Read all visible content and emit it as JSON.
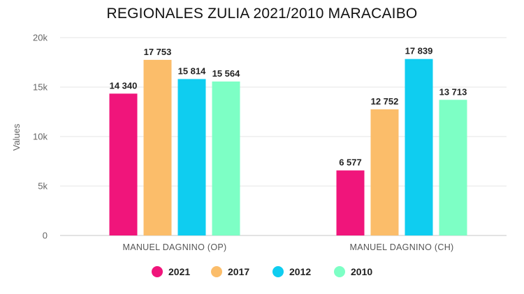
{
  "chart_data": {
    "type": "bar",
    "title": "REGIONALES ZULIA 2021/2010 MARACAIBO",
    "xlabel": "",
    "ylabel": "Values",
    "categories": [
      "MANUEL DAGNINO (OP)",
      "MANUEL DAGNINO (CH)"
    ],
    "series": [
      {
        "name": "2021",
        "color": "#f0157b",
        "values": [
          14340,
          6577
        ],
        "labels": [
          "14 340",
          "6 577"
        ]
      },
      {
        "name": "2017",
        "color": "#fbbd6a",
        "values": [
          17753,
          12752
        ],
        "labels": [
          "17 753",
          "12 752"
        ]
      },
      {
        "name": "2012",
        "color": "#0fcdf0",
        "values": [
          15814,
          17839
        ],
        "labels": [
          "15 814",
          "17 839"
        ]
      },
      {
        "name": "2010",
        "color": "#7dffc5",
        "values": [
          15564,
          13713
        ],
        "labels": [
          "15 564",
          "13 713"
        ]
      }
    ],
    "ylim": [
      0,
      20000
    ],
    "yticks": [
      0,
      5000,
      10000,
      15000,
      20000
    ],
    "ytick_labels": [
      "0",
      "5k",
      "10k",
      "15k",
      "20k"
    ],
    "grid": true,
    "legend": "bottom"
  }
}
